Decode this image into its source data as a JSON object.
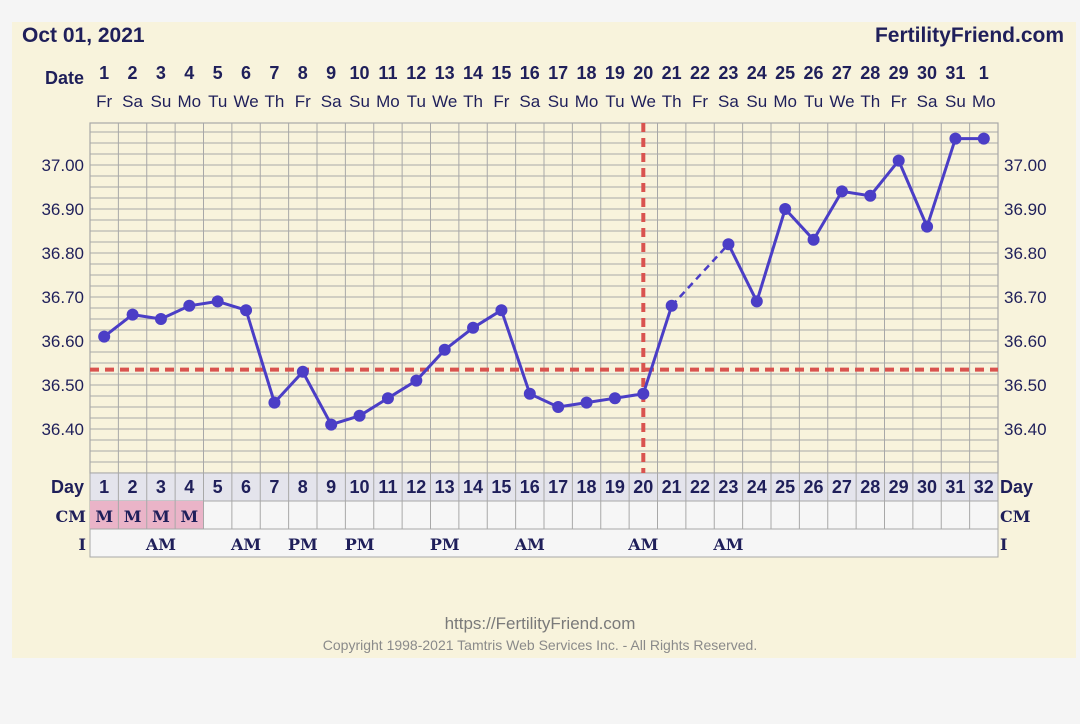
{
  "header": {
    "date": "Oct 01, 2021",
    "brand": "FertilityFriend.com"
  },
  "labels": {
    "date_row": "Date",
    "day_row": "Day",
    "cm_row": "CM",
    "i_row": "I"
  },
  "footer": {
    "url": "https://FertilityFriend.com",
    "copyright": "Copyright 1998-2021 Tamtris Web Services Inc. - All Rights Reserved."
  },
  "colors": {
    "line": "#4b3ec6",
    "ref": "#d9534f",
    "grid": "#a8a8a8",
    "cm_highlight": "#eab4c8"
  },
  "chart_data": {
    "type": "line",
    "dates": [
      "1",
      "2",
      "3",
      "4",
      "5",
      "6",
      "7",
      "8",
      "9",
      "10",
      "11",
      "12",
      "13",
      "14",
      "15",
      "16",
      "17",
      "18",
      "19",
      "20",
      "21",
      "22",
      "23",
      "24",
      "25",
      "26",
      "27",
      "28",
      "29",
      "30",
      "31",
      "1"
    ],
    "weekdays": [
      "Fr",
      "Sa",
      "Su",
      "Mo",
      "Tu",
      "We",
      "Th",
      "Fr",
      "Sa",
      "Su",
      "Mo",
      "Tu",
      "We",
      "Th",
      "Fr",
      "Sa",
      "Su",
      "Mo",
      "Tu",
      "We",
      "Th",
      "Fr",
      "Sa",
      "Su",
      "Mo",
      "Tu",
      "We",
      "Th",
      "Fr",
      "Sa",
      "Su",
      "Mo"
    ],
    "days": [
      1,
      2,
      3,
      4,
      5,
      6,
      7,
      8,
      9,
      10,
      11,
      12,
      13,
      14,
      15,
      16,
      17,
      18,
      19,
      20,
      21,
      22,
      23,
      24,
      25,
      26,
      27,
      28,
      29,
      30,
      31,
      32
    ],
    "series": [
      {
        "values": [
          36.61,
          36.66,
          36.65,
          36.68,
          36.69,
          36.67,
          36.46,
          36.53,
          36.41,
          36.43,
          36.47,
          36.51,
          36.58,
          36.63,
          36.67,
          36.48,
          36.45,
          36.46,
          36.47,
          36.48,
          36.68,
          null,
          36.82,
          36.69,
          36.9,
          36.83,
          36.94,
          36.93,
          37.01,
          36.86,
          37.06,
          37.06
        ]
      }
    ],
    "yticks": [
      "37.00",
      "36.90",
      "36.80",
      "36.70",
      "36.60",
      "36.50",
      "36.40"
    ],
    "ylim": [
      36.31,
      37.1
    ],
    "coverline": 36.535,
    "ovulation_day": 20,
    "cm": [
      "M",
      "M",
      "M",
      "M",
      "",
      "",
      "",
      "",
      "",
      "",
      "",
      "",
      "",
      "",
      "",
      "",
      "",
      "",
      "",
      "",
      "",
      "",
      "",
      "",
      "",
      "",
      "",
      "",
      "",
      "",
      "",
      ""
    ],
    "intercourse": [
      "",
      "",
      "AM",
      "",
      "",
      "AM",
      "",
      "PM",
      "",
      "PM",
      "",
      "",
      "PM",
      "",
      "",
      "AM",
      "",
      "",
      "",
      "AM",
      "",
      "",
      "AM",
      "",
      "",
      "",
      "",
      "",
      "",
      "",
      "",
      ""
    ]
  }
}
